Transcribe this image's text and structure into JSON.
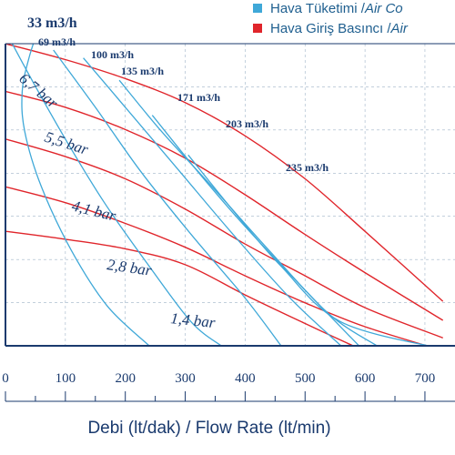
{
  "legend": {
    "items": [
      {
        "label_tr": "Hava Tüketimi / ",
        "label_en": "Air Co",
        "color": "#3fa8d8"
      },
      {
        "label_tr": "Hava Giriş Basıncı / ",
        "label_en": "Air",
        "color": "#e0252b"
      }
    ]
  },
  "chart_data": {
    "type": "line",
    "xlabel": "Debi (lt/dak) / Flow Rate (lt/min)",
    "x_ticks": [
      0,
      100,
      200,
      300,
      400,
      500,
      600,
      700
    ],
    "xlim": [
      0,
      730
    ],
    "grid": true,
    "colors": {
      "air_consumption": "#3fa8d8",
      "inlet_pressure": "#e0252b",
      "axis": "#1a3a6e",
      "text": "#1a3a6e"
    },
    "pressure_series": [
      {
        "name": "6,7 bar",
        "points": [
          [
            0,
            0.0
          ],
          [
            100,
            1.0
          ],
          [
            200,
            2.2
          ],
          [
            300,
            3.7
          ],
          [
            400,
            5.8
          ],
          [
            500,
            8.5
          ],
          [
            600,
            11.8
          ],
          [
            730,
            16.2
          ]
        ]
      },
      {
        "name": "5,5 bar",
        "points": [
          [
            0,
            3.0
          ],
          [
            100,
            4.0
          ],
          [
            200,
            5.4
          ],
          [
            300,
            7.2
          ],
          [
            400,
            9.5
          ],
          [
            500,
            12.0
          ],
          [
            600,
            14.4
          ],
          [
            730,
            17.4
          ]
        ]
      },
      {
        "name": "4,1 bar",
        "points": [
          [
            0,
            6.0
          ],
          [
            100,
            7.1
          ],
          [
            200,
            8.5
          ],
          [
            300,
            10.4
          ],
          [
            400,
            12.6
          ],
          [
            500,
            14.6
          ],
          [
            600,
            16.6
          ],
          [
            730,
            18.5
          ]
        ]
      },
      {
        "name": "2,8 bar",
        "points": [
          [
            0,
            9.0
          ],
          [
            100,
            10.0
          ],
          [
            200,
            11.3
          ],
          [
            300,
            12.8
          ],
          [
            400,
            14.6
          ],
          [
            500,
            16.3
          ],
          [
            600,
            17.8
          ],
          [
            730,
            19.3
          ]
        ]
      },
      {
        "name": "1,4 bar",
        "points": [
          [
            0,
            11.8
          ],
          [
            100,
            12.3
          ],
          [
            200,
            12.9
          ],
          [
            300,
            13.9
          ],
          [
            400,
            15.8
          ],
          [
            500,
            17.6
          ],
          [
            580,
            19.0
          ]
        ]
      }
    ],
    "consumption_series": [
      {
        "name": "33 m3/h",
        "points": [
          [
            60,
            -1.5
          ],
          [
            40,
            0.8
          ],
          [
            28,
            3.0
          ],
          [
            32,
            5.5
          ],
          [
            60,
            9.0
          ],
          [
            110,
            13.0
          ],
          [
            170,
            16.5
          ],
          [
            240,
            19.0
          ]
        ]
      },
      {
        "name": "69 m3/h",
        "points": [
          [
            0,
            -0.8
          ],
          [
            40,
            2.0
          ],
          [
            100,
            6.0
          ],
          [
            165,
            10.0
          ],
          [
            240,
            14.0
          ],
          [
            310,
            17.5
          ],
          [
            360,
            19.0
          ]
        ]
      },
      {
        "name": "100 m3/h",
        "points": [
          [
            80,
            0.4
          ],
          [
            150,
            4.0
          ],
          [
            225,
            8.0
          ],
          [
            310,
            12.0
          ],
          [
            400,
            16.0
          ],
          [
            460,
            19.0
          ]
        ]
      },
      {
        "name": "135 m3/h",
        "points": [
          [
            130,
            0.9
          ],
          [
            200,
            4.0
          ],
          [
            290,
            8.0
          ],
          [
            380,
            12.0
          ],
          [
            475,
            16.0
          ],
          [
            560,
            19.0
          ]
        ]
      },
      {
        "name": "171 m3/h",
        "points": [
          [
            190,
            2.3
          ],
          [
            260,
            5.5
          ],
          [
            345,
            9.0
          ],
          [
            440,
            13.0
          ],
          [
            540,
            17.0
          ],
          [
            620,
            19.0
          ]
        ]
      },
      {
        "name": "203 m3/h",
        "points": [
          [
            245,
            4.5
          ],
          [
            320,
            8.0
          ],
          [
            400,
            11.5
          ],
          [
            500,
            15.5
          ],
          [
            590,
            19.0
          ]
        ]
      },
      {
        "name": "235 m3/h",
        "points": [
          [
            305,
            7.0
          ],
          [
            380,
            10.5
          ],
          [
            460,
            14.0
          ],
          [
            560,
            17.5
          ],
          [
            730,
            19.2
          ]
        ]
      }
    ]
  }
}
